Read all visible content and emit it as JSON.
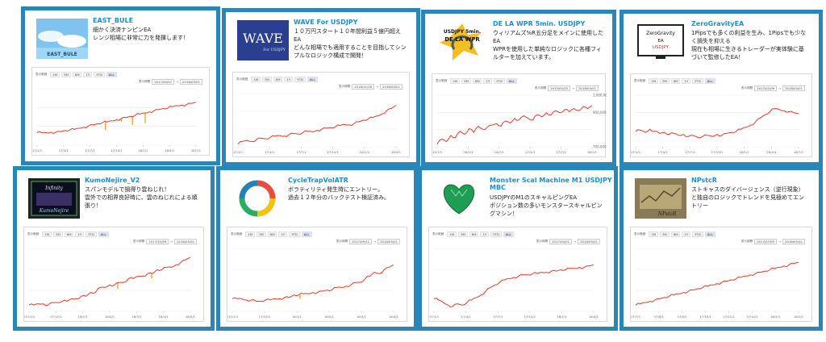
{
  "colors": {
    "border": "#2b86b8",
    "title": "#1a8fd0",
    "line": "#e43a2a",
    "accent": "#f5a623"
  },
  "zoom": {
    "label": "表示範囲",
    "buttons": [
      "1M",
      "3M",
      "6M",
      "1Y",
      "YTD",
      "ALL"
    ]
  },
  "range_label": "表示期間",
  "cards": [
    {
      "title": "EAST_BULE",
      "desc": "細かく決済ナンピンEA\nレンジ相場に非常に力を発揮します！",
      "thumb_icon": "east-bule-sky-logo",
      "thumb_text": "EAST_BULE",
      "zoom_on": 5,
      "date_from": "2017/04/07",
      "date_to": "2018/05/01",
      "y_ticks": [
        "",
        "",
        "",
        ""
      ],
      "x_ticks": [
        "17/1/1",
        "17/4/1",
        "17/7/1",
        "17/10/1",
        "18/1/1",
        "18/4/1",
        "18/7/1"
      ],
      "series": [
        0.22,
        0.22,
        0.22,
        0.23,
        0.23,
        0.24,
        0.26,
        0.27,
        0.28,
        0.3,
        0.32,
        0.34,
        0.36,
        0.38,
        0.4,
        0.41,
        0.43,
        0.45,
        0.47,
        0.49,
        0.51,
        0.53,
        0.55,
        0.57,
        0.59,
        0.61,
        0.63,
        0.65,
        0.66,
        0.68,
        0.7,
        0.71,
        0.72,
        0.74,
        0.76
      ],
      "dips": [
        [
          0.36,
          0.02
        ],
        [
          0.43,
          0.14
        ],
        [
          0.53,
          0.05
        ],
        [
          0.6,
          0.15
        ],
        [
          0.68,
          0.18
        ]
      ]
    },
    {
      "title": "WAVE For USDJPY",
      "desc": "１０万円スタート１０年間利益５億円超え\nEA\nどんな相場でも適用することを目指してシン\nプルなロジック構成で開発！",
      "thumb_icon": "wave-usdjpy-logo",
      "thumb_text": "WAVE",
      "thumb_sub": "For USDJPY",
      "zoom_on": 5,
      "date_from": "2018/11/28",
      "date_to": "2018/05/01",
      "y_ticks": [
        "",
        "",
        "",
        ""
      ],
      "x_ticks": [
        "17/1/1",
        "17/4/1",
        "17/7/1",
        "17/10/1",
        "18/1/1",
        "18/4/1"
      ],
      "series": [
        0.05,
        0.1,
        0.12,
        0.1,
        0.14,
        0.16,
        0.15,
        0.18,
        0.2,
        0.21,
        0.2,
        0.23,
        0.25,
        0.24,
        0.27,
        0.29,
        0.28,
        0.31,
        0.33,
        0.35,
        0.36,
        0.38,
        0.4,
        0.42,
        0.41,
        0.44,
        0.47,
        0.5,
        0.52,
        0.55,
        0.58,
        0.62,
        0.68,
        0.72,
        0.78
      ],
      "dips": []
    },
    {
      "title": "DE LA WPR 5min. USDJPY",
      "desc": "ウィリアムズ%R五分足をメインに使用した\nEA\nWPRを使用した単純なロジックに各種フィ\nルターを加えています。",
      "thumb_icon": "de-la-wpr-logo",
      "thumb_text": "USDJPY 5min.",
      "thumb_sub": "DE LA WPR",
      "zoom_on": 5,
      "date_from": "2015/05/25",
      "date_to": "2018/05/01",
      "y_ticks": [
        "1,000,000",
        "900,000",
        "",
        "700,000"
      ],
      "x_ticks": [
        "15/7/1",
        "16/1/1",
        "16/7/1",
        "17/1/1",
        "17/7/1",
        "18/1/1"
      ],
      "series": [
        0.05,
        0.15,
        0.1,
        0.22,
        0.18,
        0.3,
        0.24,
        0.35,
        0.28,
        0.4,
        0.34,
        0.38,
        0.42,
        0.45,
        0.4,
        0.5,
        0.46,
        0.55,
        0.52,
        0.6,
        0.55,
        0.52,
        0.62,
        0.58,
        0.66,
        0.62,
        0.7,
        0.66,
        0.72,
        0.68,
        0.74,
        0.7,
        0.78,
        0.74,
        0.8
      ],
      "dips": []
    },
    {
      "title": "ZeroGravityEA",
      "desc": "1Pipsでも多くの利益を生み、1Pipsでも少な\nく損失を抑える\n現在も相場に生きるトレーダーが実体験に基\nづいて監修したEA！",
      "thumb_icon": "zerogravity-logo",
      "thumb_text": "ZeroGravity",
      "thumb_sub": "EA\nUSDJPY",
      "zoom_on": 5,
      "date_from": "2017/02/09",
      "date_to": "2018/05/01",
      "y_ticks": [
        "",
        "",
        "",
        ""
      ],
      "x_ticks": [
        "17/1/1",
        "17/4/1",
        "17/7/1",
        "17/10/1",
        "18/1/1",
        "18/4/1",
        "18/7/1"
      ],
      "series": [
        0.3,
        0.32,
        0.28,
        0.34,
        0.3,
        0.26,
        0.28,
        0.24,
        0.26,
        0.22,
        0.24,
        0.2,
        0.22,
        0.18,
        0.2,
        0.22,
        0.2,
        0.24,
        0.22,
        0.26,
        0.28,
        0.3,
        0.34,
        0.38,
        0.42,
        0.48,
        0.56,
        0.62,
        0.68,
        0.74,
        0.72,
        0.7,
        0.68,
        0.66,
        0.64
      ],
      "dips": []
    },
    {
      "title": "KumoNejire_V2",
      "desc": "スパンモデルで損得り雲ねじれ！\n雲外での相界良好時に、雲のねじれによる順\n張り！",
      "thumb_icon": "kumonejire-logo",
      "thumb_text": "Infinity",
      "thumb_sub": "KumoNejire",
      "zoom_on": 5,
      "date_from": "2017/10/09",
      "date_to": "2018/05/01",
      "y_ticks": [
        "",
        "",
        "",
        ""
      ],
      "x_ticks": [
        "17/11/1",
        "17/12/1",
        "18/1/1",
        "18/2/1",
        "18/3/1",
        "18/4/1",
        "18/5/1"
      ],
      "series": [
        0.1,
        0.1,
        0.12,
        0.12,
        0.1,
        0.14,
        0.14,
        0.16,
        0.16,
        0.2,
        0.2,
        0.24,
        0.24,
        0.3,
        0.3,
        0.38,
        0.38,
        0.42,
        0.42,
        0.46,
        0.46,
        0.52,
        0.52,
        0.56,
        0.56,
        0.6,
        0.6,
        0.66,
        0.66,
        0.7,
        0.7,
        0.74,
        0.78,
        0.82,
        0.86
      ],
      "dips": [
        [
          0.55,
          0.1
        ],
        [
          0.76,
          0.08
        ]
      ]
    },
    {
      "title": "CycleTrapVolATR",
      "desc": "ボラティリティ発生時にエントリー。\n過去１２年分のバックテスト検証済み。",
      "thumb_icon": "cycle-arrows-icon",
      "zoom_on": 5,
      "date_from": "2017/09/11",
      "date_to": "2018/05/01",
      "y_ticks": [
        "",
        "",
        "",
        ""
      ],
      "x_ticks": [
        "17/11/1",
        "17/12/1",
        "18/1/1",
        "18/2/1",
        "18/3/1",
        "18/4/1"
      ],
      "series": [
        0.2,
        0.2,
        0.2,
        0.18,
        0.18,
        0.16,
        0.16,
        0.18,
        0.18,
        0.2,
        0.2,
        0.22,
        0.22,
        0.26,
        0.26,
        0.28,
        0.28,
        0.3,
        0.3,
        0.32,
        0.34,
        0.34,
        0.38,
        0.38,
        0.4,
        0.42,
        0.46,
        0.46,
        0.52,
        0.56,
        0.62,
        0.6,
        0.66,
        0.7,
        0.74
      ],
      "dips": [
        [
          0.42,
          0.06
        ]
      ]
    },
    {
      "title": "Monster Scal Machine M1 USDJPY\nMBC",
      "desc": "USDJPYのM1のスキャルピングEA\nポジション数の多いモンスタースキャルピン\nグマシン！",
      "thumb_icon": "emerald-heart-icon",
      "zoom_on": 5,
      "date_from": "2017/04/01",
      "date_to": "2018/05/01",
      "y_ticks": [
        "",
        "",
        "",
        ""
      ],
      "x_ticks": [
        "17/1/1",
        "17/4/1",
        "17/7/1",
        "17/10/1",
        "18/1/1",
        "18/4/1"
      ],
      "series": [
        0.2,
        0.18,
        0.14,
        0.1,
        0.08,
        0.12,
        0.1,
        0.14,
        0.18,
        0.22,
        0.26,
        0.32,
        0.38,
        0.42,
        0.46,
        0.5,
        0.52,
        0.54,
        0.56,
        0.58,
        0.58,
        0.6,
        0.6,
        0.62,
        0.62,
        0.64,
        0.64,
        0.66,
        0.66,
        0.68,
        0.68,
        0.7,
        0.7,
        0.72,
        0.74
      ],
      "dips": []
    },
    {
      "title": "NPstcR",
      "desc": "ストキャスのダイバージェンス（逆行現象）\nと独自のロジックでトレンドを見極めてエン\nトリー",
      "thumb_icon": "npstcr-logo",
      "thumb_text": "NPstcR",
      "zoom_on": 5,
      "date_from": "2017/07/03",
      "date_to": "2018/05/01",
      "y_ticks": [
        "",
        "",
        "",
        ""
      ],
      "x_ticks": [
        "17/7/1",
        "17/8/1",
        "17/9/1",
        "17/10/1",
        "17/11/1",
        "17/12/1",
        "18/1/1",
        "18/2/1"
      ],
      "series": [
        0.1,
        0.12,
        0.14,
        0.16,
        0.18,
        0.2,
        0.22,
        0.24,
        0.26,
        0.28,
        0.3,
        0.32,
        0.34,
        0.36,
        0.38,
        0.4,
        0.42,
        0.44,
        0.46,
        0.48,
        0.5,
        0.52,
        0.54,
        0.56,
        0.58,
        0.6,
        0.62,
        0.64,
        0.66,
        0.68,
        0.7,
        0.72,
        0.74,
        0.76,
        0.78
      ],
      "dips": []
    }
  ]
}
